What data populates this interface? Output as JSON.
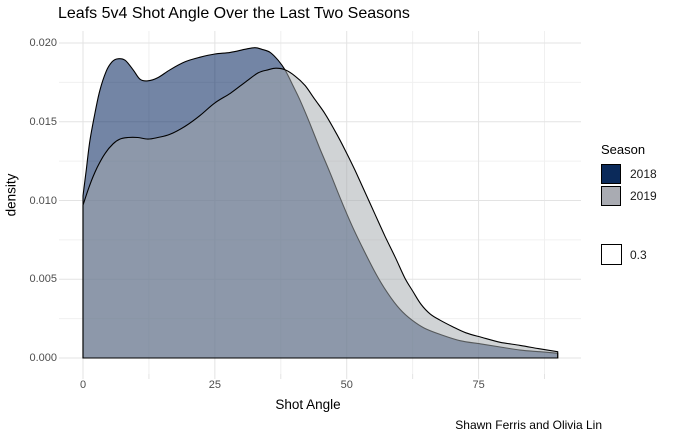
{
  "title": "Leafs 5v4 Shot Angle Over the Last Two Seasons",
  "caption": "Shawn Ferris and Olivia Lin",
  "axes": {
    "x": {
      "label": "Shot Angle",
      "tick_labels": [
        "0",
        "25",
        "50",
        "75"
      ]
    },
    "y": {
      "label": "density",
      "tick_labels": [
        "0.000",
        "0.005",
        "0.010",
        "0.015",
        "0.020"
      ]
    }
  },
  "legend": {
    "title": "Season",
    "items": [
      {
        "label": "2018",
        "color": "#0b2a5a"
      },
      {
        "label": "2019",
        "color": "#a9abb2"
      }
    ],
    "alpha_item": {
      "label": "0.3",
      "color": "#ffffff"
    }
  },
  "colors": {
    "fill_2018": "#00205b",
    "fill_2019": "#a5aaaf",
    "outline": "#000000",
    "grid_major": "#e3e3e3",
    "grid_minor": "#f0f0f0",
    "tick_text": "#4d4d4d",
    "background": "#ffffff"
  },
  "chart_data": {
    "type": "area",
    "subtype": "overlapping-density",
    "title": "Leafs 5v4 Shot Angle Over the Last Two Seasons",
    "xlabel": "Shot Angle",
    "ylabel": "density",
    "caption": "Shawn Ferris and Olivia Lin",
    "xlim": [
      0,
      90
    ],
    "ylim": [
      0,
      0.0207
    ],
    "x_ticks": [
      0,
      25,
      50,
      75
    ],
    "x_minor_ticks": [
      12.5,
      37.5,
      62.5,
      87.5
    ],
    "y_ticks": [
      0,
      0.005,
      0.01,
      0.015,
      0.02
    ],
    "y_minor_ticks": [
      0.0025,
      0.0075,
      0.0125,
      0.0175
    ],
    "grid": true,
    "legend_position": "right",
    "legend_title": "Season",
    "alpha": 0.3,
    "series": [
      {
        "name": "2018",
        "fill": "#00205b",
        "fill_opacity": 0.55,
        "stroke": "#000000",
        "points": [
          [
            0,
            0.0103
          ],
          [
            0.6,
            0.0119
          ],
          [
            1.3,
            0.0138
          ],
          [
            2.3,
            0.0156
          ],
          [
            3.2,
            0.017
          ],
          [
            4.4,
            0.0182
          ],
          [
            5.5,
            0.0188
          ],
          [
            6.6,
            0.019
          ],
          [
            8.0,
            0.0189
          ],
          [
            9.5,
            0.0183
          ],
          [
            10.8,
            0.0177
          ],
          [
            12.3,
            0.0176
          ],
          [
            14.2,
            0.0178
          ],
          [
            16.5,
            0.0183
          ],
          [
            19.3,
            0.0188
          ],
          [
            22.2,
            0.0191
          ],
          [
            25.0,
            0.0193
          ],
          [
            27.9,
            0.0194
          ],
          [
            30.7,
            0.0196
          ],
          [
            32.6,
            0.0197
          ],
          [
            33.9,
            0.0196
          ],
          [
            35.5,
            0.0194
          ],
          [
            37.0,
            0.0189
          ],
          [
            38.3,
            0.0183
          ],
          [
            39.8,
            0.0173
          ],
          [
            41.1,
            0.0164
          ],
          [
            43.0,
            0.0149
          ],
          [
            44.9,
            0.0133
          ],
          [
            46.8,
            0.0118
          ],
          [
            48.7,
            0.0102
          ],
          [
            51.0,
            0.0084
          ],
          [
            53.3,
            0.0068
          ],
          [
            55.6,
            0.0053
          ],
          [
            57.8,
            0.0041
          ],
          [
            60.1,
            0.0031
          ],
          [
            62.4,
            0.0024
          ],
          [
            64.7,
            0.0019
          ],
          [
            67.7,
            0.0015
          ],
          [
            71.5,
            0.0011
          ],
          [
            75.3,
            0.0009
          ],
          [
            79.1,
            0.0007
          ],
          [
            82.9,
            0.0005
          ],
          [
            86.6,
            0.0004
          ],
          [
            90,
            0.0003
          ]
        ]
      },
      {
        "name": "2019",
        "fill": "#a5aaaf",
        "fill_opacity": 0.52,
        "stroke": "#000000",
        "points": [
          [
            0,
            0.0097
          ],
          [
            1.3,
            0.011
          ],
          [
            2.7,
            0.0121
          ],
          [
            4.2,
            0.013
          ],
          [
            5.7,
            0.0136
          ],
          [
            7.0,
            0.0139
          ],
          [
            8.5,
            0.014
          ],
          [
            10.4,
            0.014
          ],
          [
            12.3,
            0.0139
          ],
          [
            14.2,
            0.014
          ],
          [
            16.5,
            0.0142
          ],
          [
            19.3,
            0.0147
          ],
          [
            22.2,
            0.0154
          ],
          [
            25.0,
            0.0162
          ],
          [
            27.9,
            0.0168
          ],
          [
            30.7,
            0.0175
          ],
          [
            33.2,
            0.0181
          ],
          [
            35.1,
            0.0183
          ],
          [
            36.6,
            0.0184
          ],
          [
            38.3,
            0.0183
          ],
          [
            40.2,
            0.0179
          ],
          [
            42.1,
            0.0173
          ],
          [
            44.0,
            0.0164
          ],
          [
            45.9,
            0.0155
          ],
          [
            47.8,
            0.0144
          ],
          [
            49.7,
            0.0132
          ],
          [
            51.6,
            0.0119
          ],
          [
            53.5,
            0.0105
          ],
          [
            55.4,
            0.0091
          ],
          [
            57.3,
            0.0077
          ],
          [
            59.2,
            0.0064
          ],
          [
            61.0,
            0.0051
          ],
          [
            62.6,
            0.0042
          ],
          [
            64.1,
            0.0034
          ],
          [
            65.8,
            0.0028
          ],
          [
            67.7,
            0.0024
          ],
          [
            70.0,
            0.002
          ],
          [
            72.6,
            0.0016
          ],
          [
            75.7,
            0.0013
          ],
          [
            79.1,
            0.001
          ],
          [
            82.9,
            0.0008
          ],
          [
            86.3,
            0.0006
          ],
          [
            90,
            0.0004
          ]
        ]
      }
    ]
  }
}
